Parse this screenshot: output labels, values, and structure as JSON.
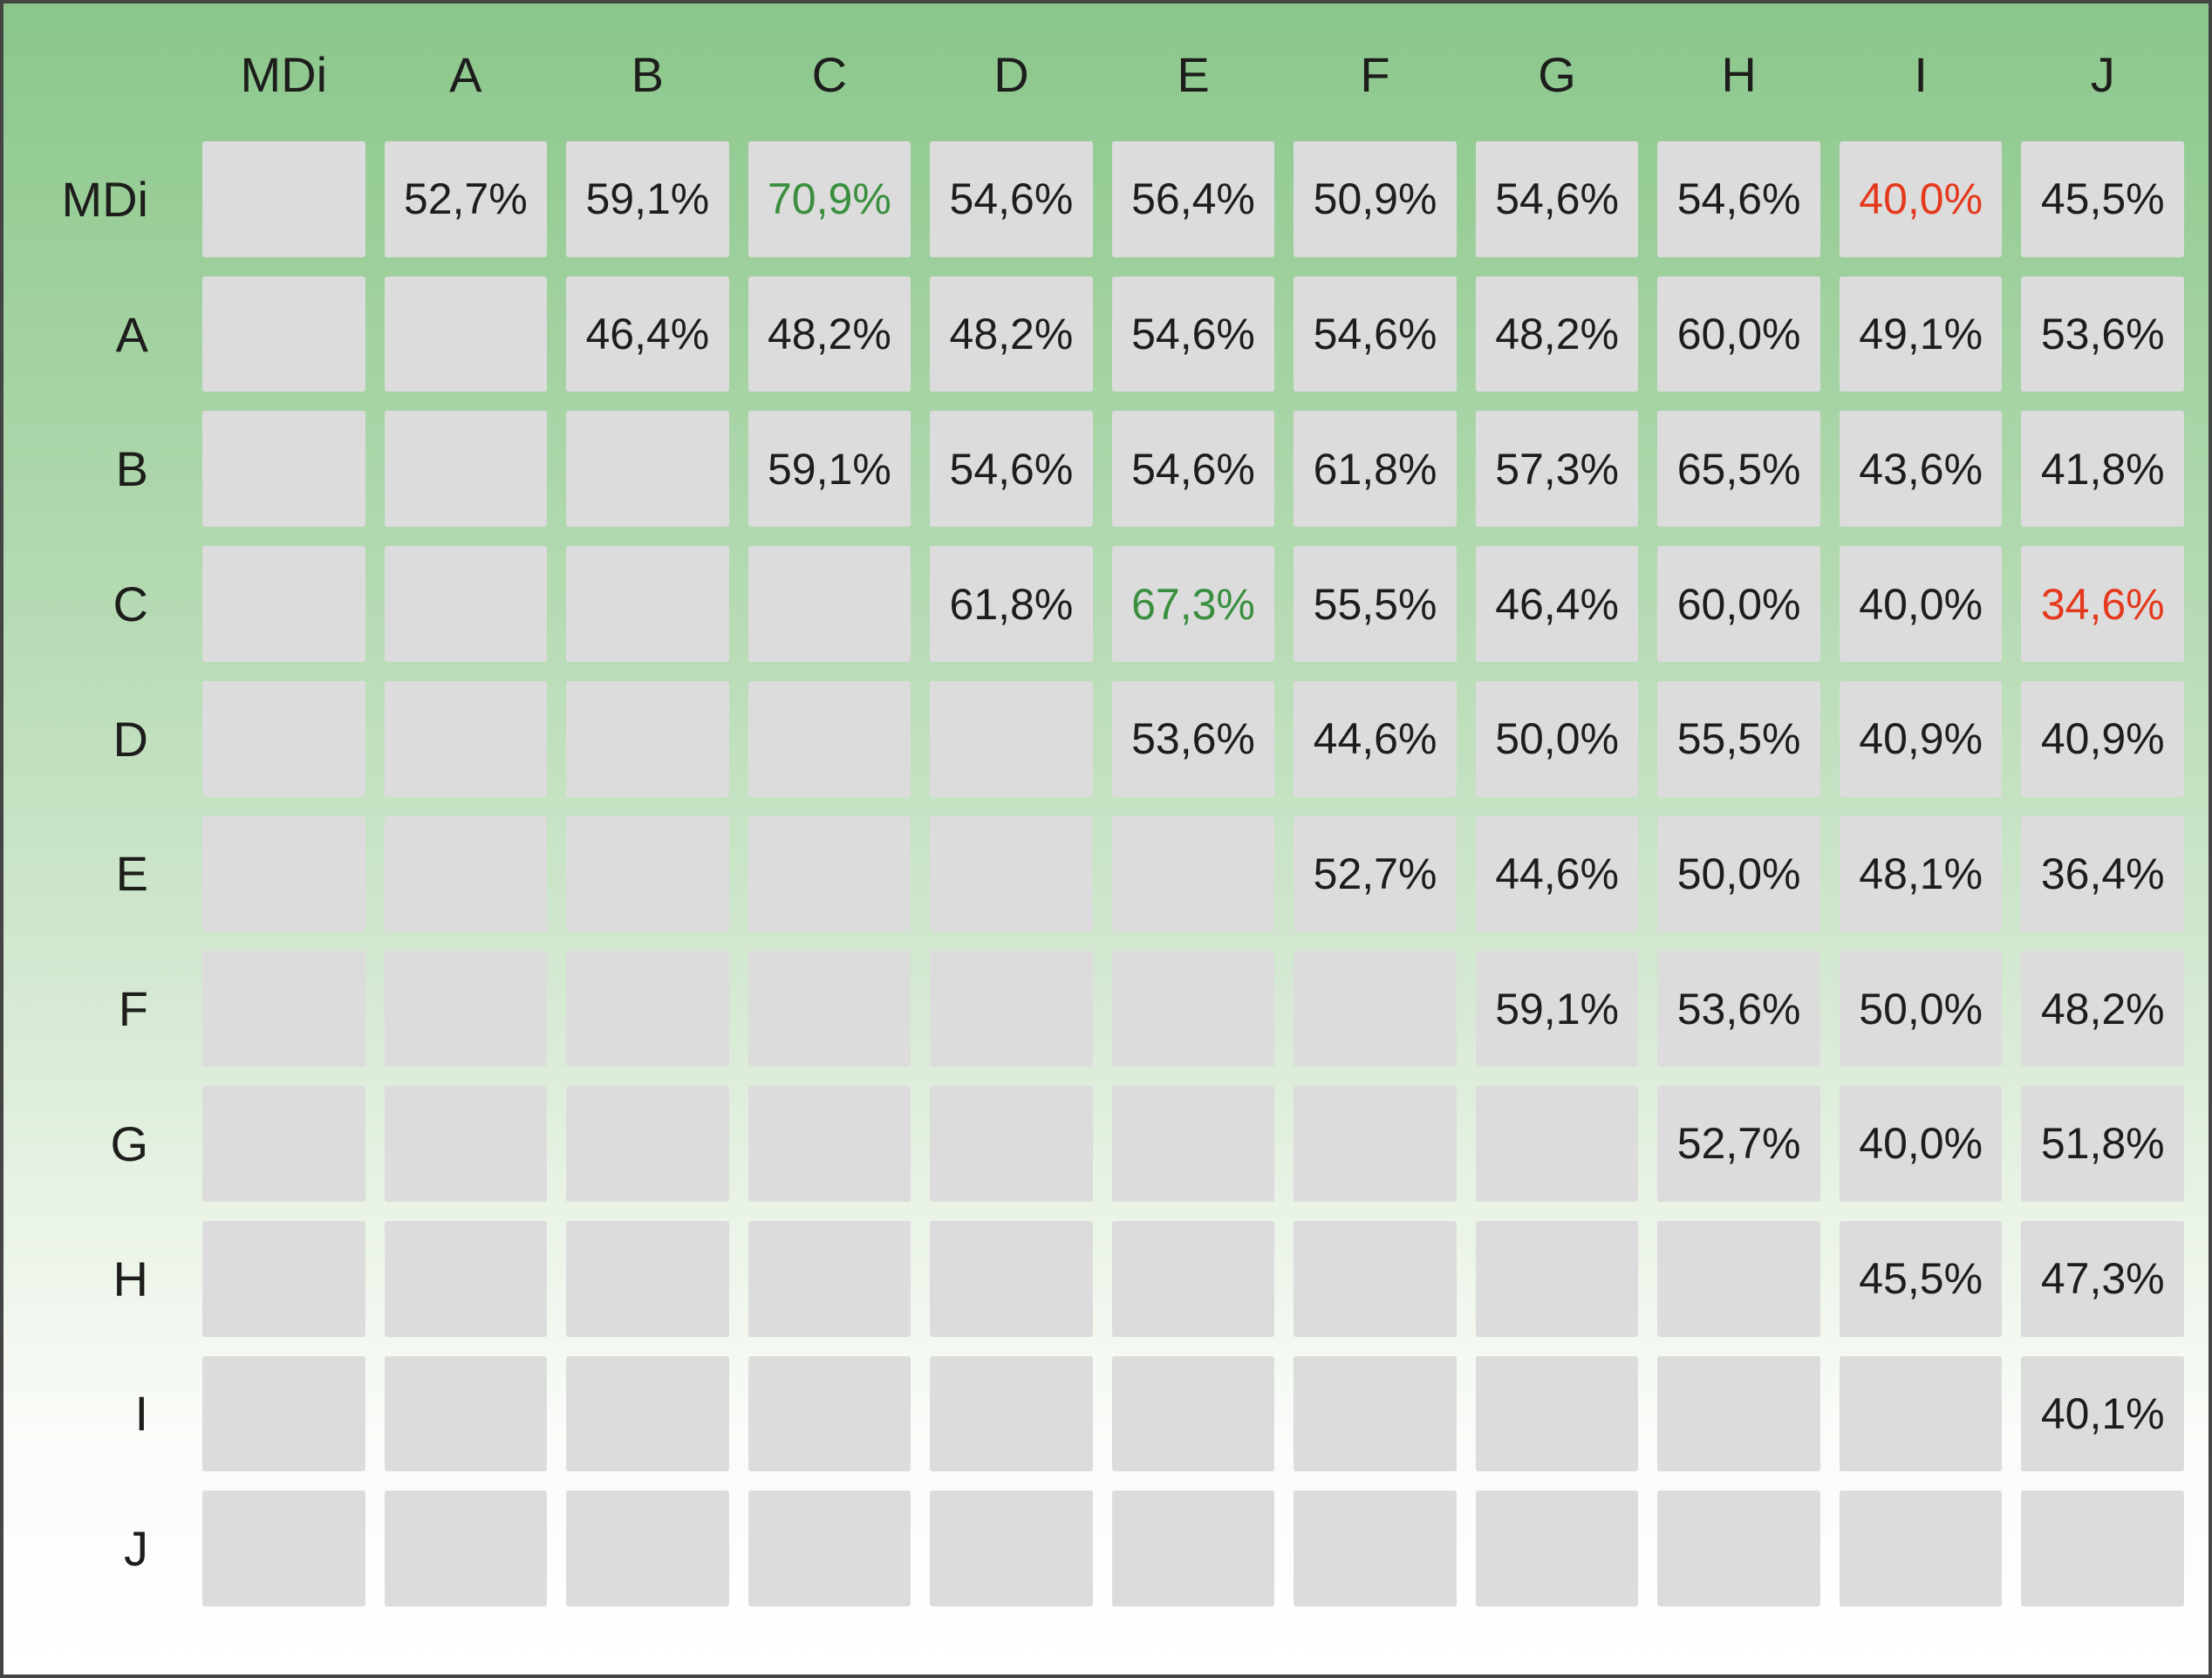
{
  "colors": {
    "green": "#3a8f3f",
    "red": "#e5391e",
    "text": "#1d1d1b",
    "cell_bg": "#dcdcdc",
    "bg_top": "#8bc78c",
    "bg_bottom": "#ffffff"
  },
  "chart_data": {
    "type": "table",
    "col_labels": [
      "MDi",
      "A",
      "B",
      "C",
      "D",
      "E",
      "F",
      "G",
      "H",
      "I",
      "J"
    ],
    "row_labels": [
      "MDi",
      "A",
      "B",
      "C",
      "D",
      "E",
      "F",
      "G",
      "H",
      "I",
      "J"
    ],
    "values": [
      [
        "",
        "52,7%",
        "59,1%",
        "70,9%",
        "54,6%",
        "56,4%",
        "50,9%",
        "54,6%",
        "54,6%",
        "40,0%",
        "45,5%"
      ],
      [
        "",
        "",
        "46,4%",
        "48,2%",
        "48,2%",
        "54,6%",
        "54,6%",
        "48,2%",
        "60,0%",
        "49,1%",
        "53,6%"
      ],
      [
        "",
        "",
        "",
        "59,1%",
        "54,6%",
        "54,6%",
        "61,8%",
        "57,3%",
        "65,5%",
        "43,6%",
        "41,8%"
      ],
      [
        "",
        "",
        "",
        "",
        "61,8%",
        "67,3%",
        "55,5%",
        "46,4%",
        "60,0%",
        "40,0%",
        "34,6%"
      ],
      [
        "",
        "",
        "",
        "",
        "",
        "53,6%",
        "44,6%",
        "50,0%",
        "55,5%",
        "40,9%",
        "40,9%"
      ],
      [
        "",
        "",
        "",
        "",
        "",
        "",
        "52,7%",
        "44,6%",
        "50,0%",
        "48,1%",
        "36,4%"
      ],
      [
        "",
        "",
        "",
        "",
        "",
        "",
        "",
        "59,1%",
        "53,6%",
        "50,0%",
        "48,2%"
      ],
      [
        "",
        "",
        "",
        "",
        "",
        "",
        "",
        "",
        "52,7%",
        "40,0%",
        "51,8%"
      ],
      [
        "",
        "",
        "",
        "",
        "",
        "",
        "",
        "",
        "",
        "45,5%",
        "47,3%"
      ],
      [
        "",
        "",
        "",
        "",
        "",
        "",
        "",
        "",
        "",
        "",
        "40,1%"
      ],
      [
        "",
        "",
        "",
        "",
        "",
        "",
        "",
        "",
        "",
        "",
        ""
      ]
    ],
    "highlight_cells": [
      {
        "row": 0,
        "col": 3,
        "value": "70,9%",
        "color": "green"
      },
      {
        "row": 0,
        "col": 9,
        "value": "40,0%",
        "color": "red"
      },
      {
        "row": 3,
        "col": 5,
        "value": "67,3%",
        "color": "green"
      },
      {
        "row": 3,
        "col": 10,
        "value": "34,6%",
        "color": "red"
      }
    ]
  }
}
